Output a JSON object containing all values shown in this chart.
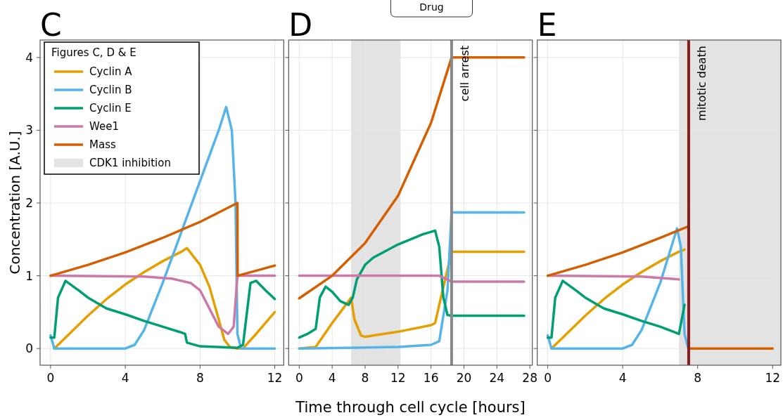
{
  "chart_data": [
    {
      "type": "line",
      "title": "C",
      "ylabel": "Concentration  [A.U.]",
      "legend_title": "Figures C, D & E",
      "legend": "top left",
      "grid": true,
      "line_style": "solid",
      "xlim": [
        -0.56,
        12.48
      ],
      "xticks": [
        0,
        4,
        8,
        12
      ],
      "ylim": [
        -0.23,
        4.24
      ],
      "yticks": [
        0,
        1,
        2,
        3,
        4
      ],
      "series": [
        {
          "name": "Cyclin A",
          "color": "#e69f00",
          "x": [
            0.2,
            1,
            2,
            3,
            4,
            5,
            6,
            7,
            7.3,
            8,
            8.5,
            9,
            9.3,
            9.6,
            10,
            10.3,
            11,
            12
          ],
          "values": [
            0,
            0.2,
            0.45,
            0.68,
            0.88,
            1.05,
            1.2,
            1.33,
            1.38,
            1.15,
            0.85,
            0.4,
            0.12,
            0.02,
            0,
            0,
            0.2,
            0.5
          ]
        },
        {
          "name": "Cyclin B",
          "color": "#56b4e9",
          "x": [
            0,
            0.2,
            4,
            4.5,
            5,
            6,
            7,
            8,
            9,
            9.4,
            9.7,
            9.9,
            10,
            10.2,
            12
          ],
          "values": [
            0.18,
            0,
            0,
            0.05,
            0.25,
            0.9,
            1.6,
            2.3,
            3.0,
            3.32,
            3.0,
            2.0,
            0.2,
            0,
            0
          ]
        },
        {
          "name": "Cyclin E",
          "color": "#009e73",
          "x": [
            0,
            0.2,
            0.4,
            0.8,
            1.5,
            2,
            3,
            4,
            5,
            6,
            7,
            7.2,
            7.3,
            8,
            10,
            10.3,
            10.7,
            11,
            11.5,
            12
          ],
          "values": [
            0.15,
            0.15,
            0.7,
            0.93,
            0.8,
            0.7,
            0.55,
            0.47,
            0.38,
            0.3,
            0.22,
            0.2,
            0.08,
            0.03,
            0.01,
            0.05,
            0.9,
            0.93,
            0.8,
            0.68
          ]
        },
        {
          "name": "Wee1",
          "color": "#cc79a7",
          "x": [
            0,
            5,
            6.5,
            7.5,
            8,
            8.5,
            9,
            9.5,
            9.8,
            10,
            12
          ],
          "values": [
            1,
            0.99,
            0.96,
            0.9,
            0.8,
            0.55,
            0.3,
            0.2,
            0.3,
            1,
            1
          ]
        },
        {
          "name": "Mass",
          "color": "#d55e00",
          "x": [
            0,
            2,
            4,
            6,
            8,
            10,
            10.01,
            12
          ],
          "values": [
            1,
            1.15,
            1.32,
            1.52,
            1.74,
            2,
            1,
            1.14
          ]
        }
      ]
    },
    {
      "type": "line",
      "title": "D",
      "xlabel": "Time through cell cycle [hours]",
      "annotations": [
        "Drug"
      ],
      "grid": true,
      "line_style": "solid",
      "tick_labels": "x",
      "xlim": [
        -1.28,
        28.3
      ],
      "xticks": [
        0,
        4,
        8,
        12,
        16,
        20,
        24,
        28
      ],
      "ylim": [
        -0.23,
        4.24
      ],
      "yticks": [
        0,
        1,
        2,
        3,
        4
      ],
      "bands": [
        {
          "axis": "x",
          "from": 6.3,
          "to": 12.3,
          "label": "CDK1 inhibition",
          "color": "#e3e3e3"
        }
      ],
      "ref_lines": [
        {
          "axis": "x",
          "value": 18.5,
          "label": "cell arrest",
          "color": "#888888"
        }
      ],
      "series": [
        {
          "color": "#e69f00",
          "x": [
            0,
            2,
            4,
            5,
            6.3,
            6.7,
            7.5,
            8,
            12,
            16,
            16.5,
            17,
            18.5,
            27.3
          ],
          "values": [
            0,
            0.02,
            0.35,
            0.5,
            0.7,
            0.4,
            0.18,
            0.16,
            0.23,
            0.32,
            0.35,
            0.6,
            1.33,
            1.33
          ]
        },
        {
          "color": "#56b4e9",
          "x": [
            0,
            12,
            16,
            17,
            18,
            18.5,
            27.3
          ],
          "values": [
            0,
            0.02,
            0.05,
            0.1,
            0.8,
            1.87,
            1.87
          ]
        },
        {
          "color": "#009e73",
          "x": [
            0,
            1,
            2,
            2.5,
            3.2,
            4,
            5,
            6,
            6.5,
            7,
            8,
            9,
            12,
            15,
            16.5,
            17,
            17.5,
            18,
            18.5,
            27.3
          ],
          "values": [
            0.15,
            0.2,
            0.27,
            0.7,
            0.85,
            0.78,
            0.65,
            0.6,
            0.7,
            0.95,
            1.15,
            1.25,
            1.43,
            1.57,
            1.62,
            1.4,
            0.7,
            0.46,
            0.45,
            0.45
          ]
        },
        {
          "color": "#cc79a7",
          "x": [
            0,
            17,
            18.5,
            27.3
          ],
          "values": [
            1,
            1,
            0.92,
            0.92
          ]
        },
        {
          "color": "#d55e00",
          "x": [
            0,
            4,
            8,
            12,
            16,
            18.5,
            27.3
          ],
          "values": [
            0.69,
            1,
            1.45,
            2.1,
            3.1,
            4,
            4
          ]
        }
      ]
    },
    {
      "type": "line",
      "title": "E",
      "grid": true,
      "line_style": "solid",
      "tick_labels": "x",
      "xlim": [
        -0.56,
        12.44
      ],
      "xticks": [
        0,
        4,
        8,
        12
      ],
      "ylim": [
        -0.23,
        4.24
      ],
      "yticks": [
        0,
        1,
        2,
        3,
        4
      ],
      "bands": [
        {
          "axis": "x",
          "from": 7.0,
          "to": 12.44,
          "color": "#e3e3e3"
        }
      ],
      "ref_lines": [
        {
          "axis": "x",
          "value": 7.52,
          "label": "mitotic death",
          "color": "#8b1a1a"
        }
      ],
      "series": [
        {
          "color": "#e69f00",
          "x": [
            0.2,
            1,
            2,
            3,
            4,
            5,
            6,
            7,
            7.3
          ],
          "values": [
            0,
            0.2,
            0.45,
            0.68,
            0.88,
            1.05,
            1.2,
            1.33,
            1.36
          ]
        },
        {
          "color": "#56b4e9",
          "x": [
            0,
            0.2,
            4,
            4.5,
            5,
            6,
            6.9,
            7.1,
            7.3,
            7.5
          ],
          "values": [
            0.18,
            0,
            0,
            0.05,
            0.25,
            0.9,
            1.65,
            1.4,
            0.2,
            0
          ]
        },
        {
          "color": "#009e73",
          "x": [
            0,
            0.2,
            0.4,
            0.8,
            1.5,
            2,
            3,
            4,
            5,
            6,
            7,
            7.3
          ],
          "values": [
            0.15,
            0.15,
            0.7,
            0.93,
            0.8,
            0.7,
            0.55,
            0.47,
            0.38,
            0.3,
            0.2,
            0.6
          ]
        },
        {
          "color": "#cc79a7",
          "x": [
            0,
            5,
            6.5,
            7
          ],
          "values": [
            1,
            0.99,
            0.96,
            0.95
          ]
        },
        {
          "color": "#d55e00",
          "x": [
            0,
            2,
            4,
            6,
            7.52,
            7.53,
            12
          ],
          "values": [
            1,
            1.15,
            1.32,
            1.52,
            1.68,
            0,
            0
          ]
        }
      ]
    }
  ]
}
